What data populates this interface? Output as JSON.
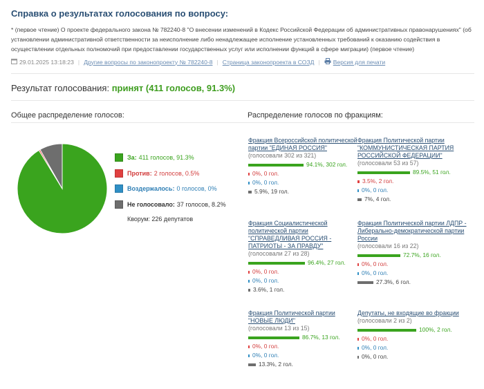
{
  "header": {
    "title": "Справка о результатах голосования по вопросу:",
    "description": "* (первое чтение) О проекте федерального закона № 782240-8 \"О внесении изменений в Кодекс Российской Федерации об административных правонарушениях\" (об установлении административной ответственности за неисполнение либо ненадлежащее исполнение установленных требований к оказанию содействия в осуществлении отдельных полномочий при предоставлении государственных услуг или исполнении функций в сфере миграции) (первое чтение)",
    "datetime": "29.01.2025 13:18:23",
    "links": {
      "other_questions": "Другие вопросы по законопроекту № 782240-8",
      "sozd_page": "Страница законопроекта в СОЗД",
      "print_version": "Версия для печати"
    }
  },
  "result": {
    "label": "Результат голосования:",
    "value": "принят (411 голосов, 91.3%)"
  },
  "overall": {
    "title": "Общее распределение голосов:",
    "items": [
      {
        "label": "За:",
        "value": "411 голосов, 91.3%",
        "color": "#3aa41e",
        "text_color": "#3aa41e",
        "fraction": 0.913
      },
      {
        "label": "Против:",
        "value": "2 голосов, 0.5%",
        "color": "#e04040",
        "text_color": "#d23c3c",
        "fraction": 0.005
      },
      {
        "label": "Воздержалось:",
        "value": "0 голосов, 0%",
        "color": "#2f8fc5",
        "text_color": "#2f7fb5",
        "fraction": 0.0
      },
      {
        "label": "Не голосовало:",
        "value": "37 голосов, 8.2%",
        "color": "#6e6e6e",
        "text_color": "#333333",
        "fraction": 0.082
      }
    ],
    "quorum": "Кворум: 226 депутатов"
  },
  "factions_title": "Распределение голосов по фракциям:",
  "factions": [
    {
      "name": "Фракция Всероссийской политической партии \"ЕДИНАЯ РОССИЯ\"",
      "voted": "(голосовали 302 из 321)",
      "rows": [
        {
          "kind": "for",
          "text": "94.1%, 302 гол.",
          "fraction": 0.941
        },
        {
          "kind": "ag",
          "text": "0%, 0 гол.",
          "fraction": 0
        },
        {
          "kind": "ab",
          "text": "0%, 0 гол.",
          "fraction": 0
        },
        {
          "kind": "nv",
          "text": "5.9%, 19 гол.",
          "fraction": 0.059
        }
      ]
    },
    {
      "name": "Фракция Политической партии \"КОММУНИСТИЧЕСКАЯ ПАРТИЯ РОССИЙСКОЙ ФЕДЕРАЦИИ\"",
      "voted": "(голосовали 53 из 57)",
      "rows": [
        {
          "kind": "for",
          "text": "89.5%, 51 гол.",
          "fraction": 0.895
        },
        {
          "kind": "ag",
          "text": "3.5%, 2 гол.",
          "fraction": 0.035
        },
        {
          "kind": "ab",
          "text": "0%, 0 гол.",
          "fraction": 0
        },
        {
          "kind": "nv",
          "text": "7%, 4 гол.",
          "fraction": 0.07
        }
      ]
    },
    {
      "name": "Фракция Социалистической политической партии \"СПРАВЕДЛИВАЯ РОССИЯ - ПАТРИОТЫ - ЗА ПРАВДУ\"",
      "voted": "(голосовали 27 из 28)",
      "rows": [
        {
          "kind": "for",
          "text": "96.4%, 27 гол.",
          "fraction": 0.964
        },
        {
          "kind": "ag",
          "text": "0%, 0 гол.",
          "fraction": 0
        },
        {
          "kind": "ab",
          "text": "0%, 0 гол.",
          "fraction": 0
        },
        {
          "kind": "nv",
          "text": "3.6%, 1 гол.",
          "fraction": 0.036
        }
      ]
    },
    {
      "name": "Фракция Политической партии ЛДПР - Либерально-демократической партии России",
      "voted": "(голосовали 16 из 22)",
      "rows": [
        {
          "kind": "for",
          "text": "72.7%, 16 гол.",
          "fraction": 0.727
        },
        {
          "kind": "ag",
          "text": "0%, 0 гол.",
          "fraction": 0
        },
        {
          "kind": "ab",
          "text": "0%, 0 гол.",
          "fraction": 0
        },
        {
          "kind": "nv",
          "text": "27.3%, 6 гол.",
          "fraction": 0.273
        }
      ]
    },
    {
      "name": "Фракция Политической партии \"НОВЫЕ ЛЮДИ\"",
      "voted": "(голосовали 13 из 15)",
      "rows": [
        {
          "kind": "for",
          "text": "86.7%, 13 гол.",
          "fraction": 0.867
        },
        {
          "kind": "ag",
          "text": "0%, 0 гол.",
          "fraction": 0
        },
        {
          "kind": "ab",
          "text": "0%, 0 гол.",
          "fraction": 0
        },
        {
          "kind": "nv",
          "text": "13.3%, 2 гол.",
          "fraction": 0.133
        }
      ]
    },
    {
      "name": "Депутаты, не входящие во фракции",
      "voted": "(голосовали 2 из 2)",
      "rows": [
        {
          "kind": "for",
          "text": "100%, 2 гол.",
          "fraction": 1.0
        },
        {
          "kind": "ag",
          "text": "0%, 0 гол.",
          "fraction": 0
        },
        {
          "kind": "ab",
          "text": "0%, 0 гол.",
          "fraction": 0
        },
        {
          "kind": "nv",
          "text": "0%, 0 гол.",
          "fraction": 0
        }
      ]
    }
  ]
}
